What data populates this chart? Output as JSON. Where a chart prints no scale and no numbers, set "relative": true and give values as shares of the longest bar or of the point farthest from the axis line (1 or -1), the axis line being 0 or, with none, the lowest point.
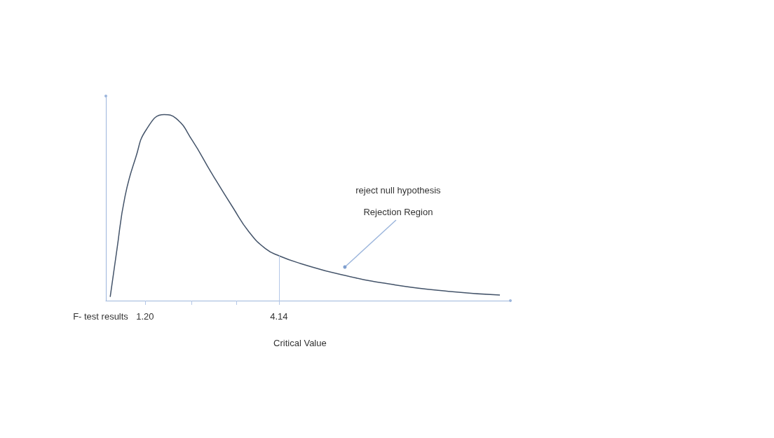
{
  "chart_data": {
    "type": "line",
    "relative": true,
    "xlabel": "F- test results",
    "x": [
      0.435,
      0.58,
      0.76,
      0.997,
      1.23,
      1.62,
      1.88,
      2.24,
      2.65,
      3.13,
      3.48,
      3.84,
      4.15,
      4.61,
      5.5,
      6.68,
      7.86,
      8.99
    ],
    "series": [
      {
        "color": "#44546a",
        "values": [
          0.02,
          0.27,
          0.56,
          0.77,
          0.92,
          1.0,
          0.98,
          0.86,
          0.69,
          0.5,
          0.37,
          0.28,
          0.24,
          0.2,
          0.14,
          0.085,
          0.05,
          0.03
        ]
      }
    ],
    "xlim": [
      0.34,
      9.22
    ],
    "xticks": [
      {
        "value": 1.2,
        "label": "1.20"
      },
      {
        "value": 2.22,
        "label": null
      },
      {
        "value": 3.2,
        "label": null
      },
      {
        "value": 4.14,
        "label": "4.14"
      }
    ],
    "ref_lines": [
      {
        "axis": "x",
        "value": 4.14,
        "color": "#b4c7e7"
      }
    ],
    "annotations": [
      "Critical Value",
      "reject null hypothesis",
      "Rejection Region"
    ],
    "marker": "none",
    "grid": false
  }
}
